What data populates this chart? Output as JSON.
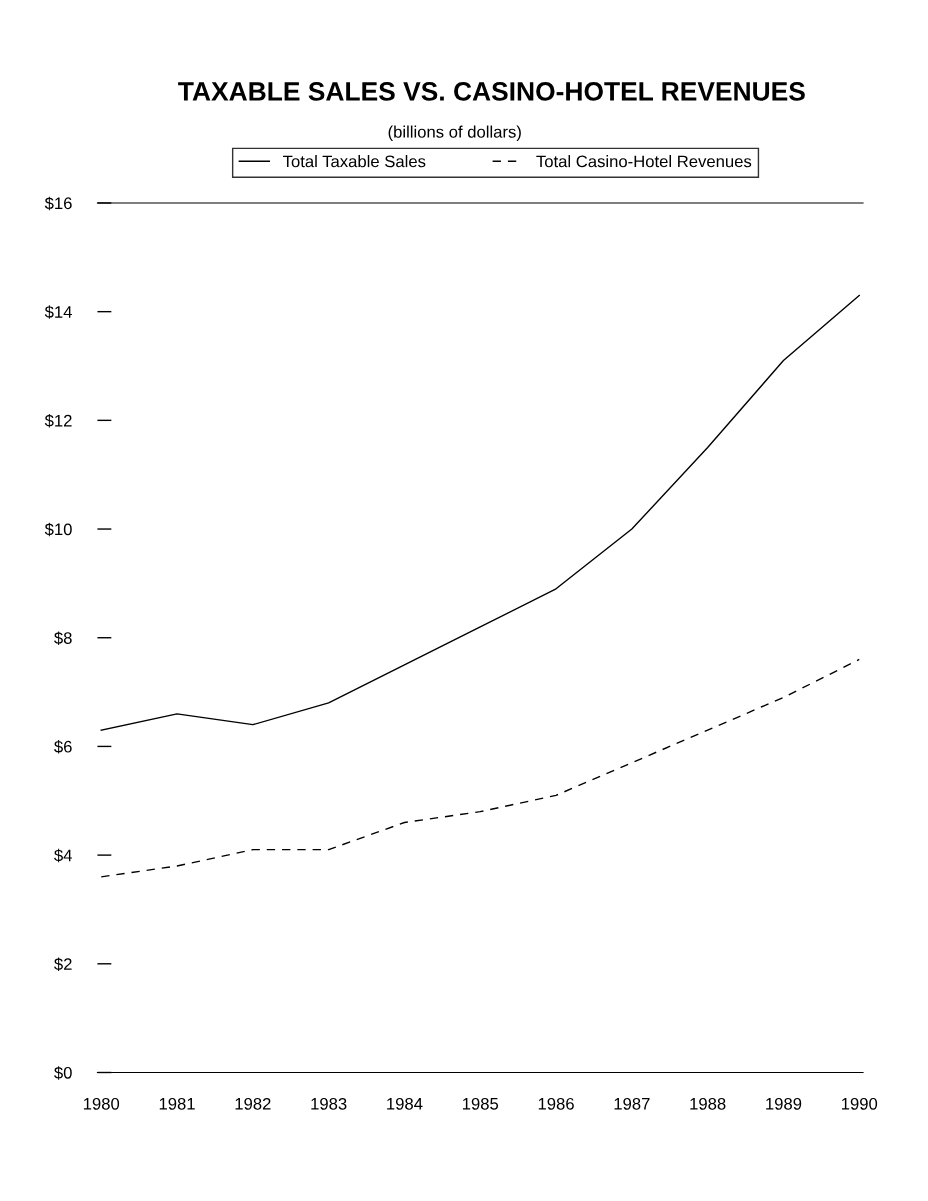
{
  "chart_data": {
    "type": "line",
    "title": "TAXABLE SALES VS. CASINO-HOTEL REVENUES",
    "subtitle": "(billions of dollars)",
    "categories": [
      "1980",
      "1981",
      "1982",
      "1983",
      "1984",
      "1985",
      "1986",
      "1987",
      "1988",
      "1989",
      "1990"
    ],
    "series": [
      {
        "name": "Total Taxable Sales",
        "color": "#000000",
        "line_style": "solid",
        "values": [
          6.3,
          6.6,
          6.4,
          6.8,
          7.5,
          8.2,
          8.9,
          10.0,
          11.5,
          13.1,
          14.3
        ]
      },
      {
        "name": "Total Casino-Hotel Revenues",
        "color": "#000000",
        "line_style": "dashed",
        "values": [
          3.6,
          3.8,
          4.1,
          4.1,
          4.6,
          4.8,
          5.1,
          5.7,
          6.3,
          6.9,
          7.6
        ]
      }
    ],
    "ylim": [
      0,
      16
    ],
    "yticks": [
      {
        "value": 0,
        "label": "$0"
      },
      {
        "value": 2,
        "label": "$2"
      },
      {
        "value": 4,
        "label": "$4"
      },
      {
        "value": 6,
        "label": "$6"
      },
      {
        "value": 8,
        "label": "$8"
      },
      {
        "value": 10,
        "label": "$10"
      },
      {
        "value": 12,
        "label": "$12"
      },
      {
        "value": 14,
        "label": "$14"
      },
      {
        "value": 16,
        "label": "$16"
      }
    ],
    "grid": false,
    "legend": "top",
    "marker": "none"
  }
}
